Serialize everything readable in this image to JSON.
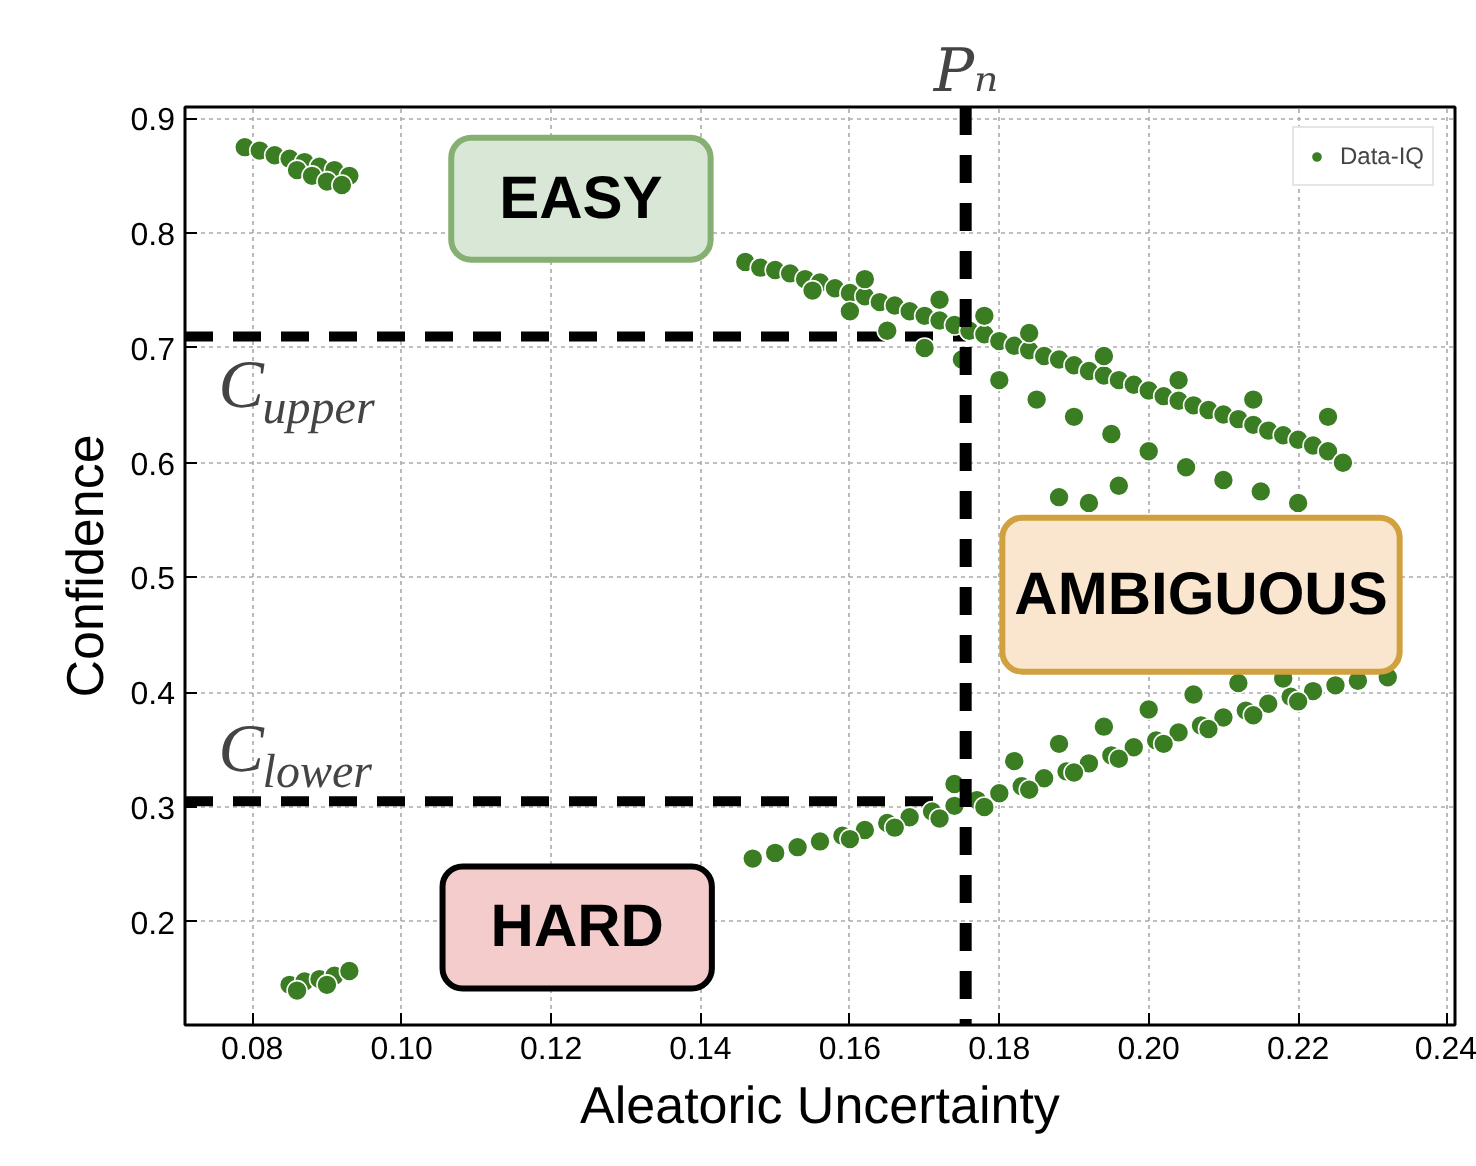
{
  "chart_data": {
    "type": "scatter",
    "xlabel": "Aleatoric Uncertainty",
    "ylabel": "Confidence",
    "xlim": [
      0.071,
      0.241
    ],
    "ylim": [
      0.11,
      0.91
    ],
    "xticks": [
      0.08,
      {
        "value": 0.1,
        "label": "0.10"
      },
      0.12,
      0.14,
      0.16,
      0.18,
      {
        "value": 0.2,
        "label": "0.20"
      },
      0.22,
      0.24
    ],
    "yticks": [
      0.2,
      0.3,
      0.4,
      0.5,
      0.6,
      0.7,
      0.8,
      0.9
    ],
    "grid": true,
    "legend": "top right",
    "marker": "circle",
    "series": [
      {
        "name": "Data-IQ",
        "color": "#3a7d22",
        "x": [
          0.079,
          0.081,
          0.083,
          0.085,
          0.087,
          0.089,
          0.091,
          0.093,
          0.086,
          0.088,
          0.09,
          0.092,
          0.146,
          0.148,
          0.15,
          0.152,
          0.154,
          0.156,
          0.158,
          0.16,
          0.162,
          0.164,
          0.166,
          0.168,
          0.17,
          0.172,
          0.174,
          0.176,
          0.178,
          0.18,
          0.182,
          0.184,
          0.186,
          0.188,
          0.19,
          0.192,
          0.194,
          0.196,
          0.198,
          0.2,
          0.202,
          0.204,
          0.206,
          0.208,
          0.21,
          0.212,
          0.214,
          0.216,
          0.218,
          0.22,
          0.222,
          0.224,
          0.226,
          0.155,
          0.16,
          0.165,
          0.17,
          0.175,
          0.18,
          0.185,
          0.19,
          0.195,
          0.2,
          0.205,
          0.21,
          0.215,
          0.22,
          0.188,
          0.192,
          0.196,
          0.162,
          0.172,
          0.178,
          0.184,
          0.194,
          0.204,
          0.214,
          0.224,
          0.085,
          0.087,
          0.089,
          0.091,
          0.093,
          0.086,
          0.09,
          0.147,
          0.15,
          0.153,
          0.156,
          0.159,
          0.162,
          0.165,
          0.168,
          0.171,
          0.174,
          0.177,
          0.18,
          0.183,
          0.186,
          0.189,
          0.192,
          0.195,
          0.198,
          0.201,
          0.204,
          0.207,
          0.21,
          0.213,
          0.216,
          0.219,
          0.222,
          0.225,
          0.228,
          0.232,
          0.16,
          0.166,
          0.172,
          0.178,
          0.184,
          0.19,
          0.196,
          0.202,
          0.208,
          0.214,
          0.22,
          0.174,
          0.182,
          0.188,
          0.194,
          0.2,
          0.206,
          0.212,
          0.218
        ],
        "values": [
          0.875,
          0.872,
          0.868,
          0.865,
          0.862,
          0.858,
          0.855,
          0.85,
          0.855,
          0.85,
          0.845,
          0.842,
          0.775,
          0.77,
          0.768,
          0.765,
          0.76,
          0.757,
          0.752,
          0.748,
          0.745,
          0.74,
          0.737,
          0.732,
          0.728,
          0.724,
          0.72,
          0.715,
          0.712,
          0.706,
          0.702,
          0.698,
          0.693,
          0.69,
          0.685,
          0.68,
          0.676,
          0.672,
          0.668,
          0.663,
          0.658,
          0.654,
          0.65,
          0.646,
          0.642,
          0.638,
          0.633,
          0.628,
          0.624,
          0.62,
          0.615,
          0.61,
          0.6,
          0.75,
          0.732,
          0.715,
          0.7,
          0.69,
          0.672,
          0.655,
          0.64,
          0.625,
          0.61,
          0.596,
          0.585,
          0.575,
          0.565,
          0.57,
          0.565,
          0.58,
          0.76,
          0.742,
          0.728,
          0.713,
          0.693,
          0.672,
          0.655,
          0.64,
          0.145,
          0.148,
          0.15,
          0.153,
          0.157,
          0.14,
          0.145,
          0.255,
          0.26,
          0.265,
          0.27,
          0.275,
          0.28,
          0.286,
          0.291,
          0.296,
          0.301,
          0.306,
          0.312,
          0.318,
          0.325,
          0.331,
          0.338,
          0.345,
          0.352,
          0.358,
          0.365,
          0.371,
          0.378,
          0.384,
          0.39,
          0.396,
          0.401,
          0.406,
          0.41,
          0.413,
          0.272,
          0.282,
          0.29,
          0.3,
          0.315,
          0.33,
          0.342,
          0.355,
          0.368,
          0.38,
          0.392,
          0.32,
          0.34,
          0.355,
          0.37,
          0.385,
          0.398,
          0.408,
          0.412
        ]
      }
    ],
    "ref_lines": [
      {
        "axis": "x",
        "value": 0.1755,
        "label": "Pₙ"
      },
      {
        "axis": "y",
        "value": 0.71,
        "label": "C$_{upper}$"
      },
      {
        "axis": "y",
        "value": 0.305,
        "label": "C$_{lower}$"
      }
    ],
    "annotations": [
      "EASY",
      "AMBIGUOUS",
      "HARD"
    ]
  }
}
